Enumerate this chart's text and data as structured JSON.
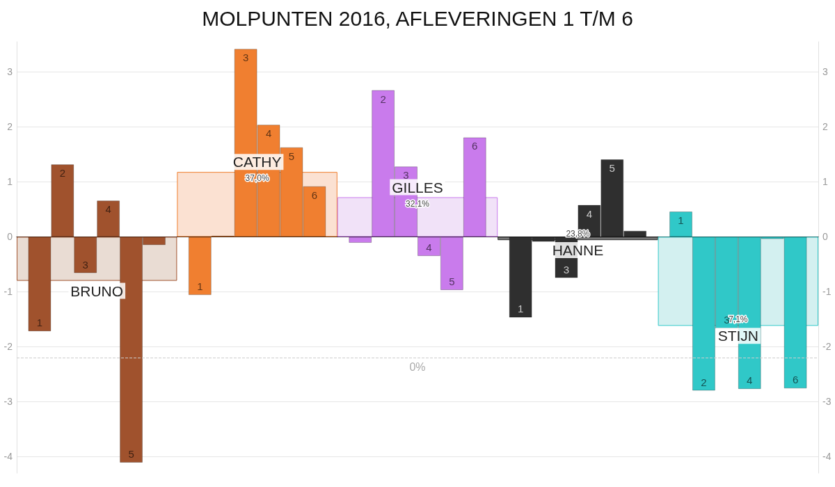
{
  "chart_data": {
    "type": "bar",
    "title": "MOLPUNTEN 2016, AFLEVERINGEN 1 T/M 6",
    "categories": [
      "BRUNO",
      "CATHY",
      "GILLES",
      "HANNE",
      "STIJN"
    ],
    "series": [
      {
        "colors": [
          "#e9dcd3",
          "#fbe1d2",
          "#f1e2f8",
          "#777777",
          "#d3f0f0"
        ],
        "values": [
          -0.8,
          1.18,
          0.72,
          -0.06,
          -1.62
        ]
      },
      {
        "name": "1",
        "colors": [
          "#a0522d",
          "#f07f30",
          "#c97bec",
          "#2f2f2f",
          "#30c8c8"
        ],
        "values": [
          -1.72,
          -1.06,
          -0.11,
          -1.47,
          0.46
        ]
      },
      {
        "name": "2",
        "colors": [
          "#a0522d",
          "#f07f30",
          "#c97bec",
          "#2f2f2f",
          "#30c8c8"
        ],
        "values": [
          1.32,
          0.02,
          2.67,
          -0.09,
          -2.8
        ]
      },
      {
        "name": "3",
        "colors": [
          "#a0522d",
          "#f07f30",
          "#c97bec",
          "#2f2f2f",
          "#30c8c8"
        ],
        "values": [
          -0.66,
          3.42,
          1.28,
          -0.75,
          -1.67
        ]
      },
      {
        "name": "4",
        "colors": [
          "#a0522d",
          "#f07f30",
          "#c97bec",
          "#2f2f2f",
          "#30c8c8"
        ],
        "values": [
          0.66,
          2.04,
          -0.35,
          0.58,
          -2.77
        ]
      },
      {
        "name": "5",
        "colors": [
          "#a0522d",
          "#f07f30",
          "#c97bec",
          "#2f2f2f",
          "#30c8c8"
        ],
        "values": [
          -4.11,
          1.63,
          -0.97,
          1.41,
          -0.04
        ]
      },
      {
        "name": "6",
        "colors": [
          "#a0522d",
          "#f07f30",
          "#c97bec",
          "#2f2f2f",
          "#30c8c8"
        ],
        "values": [
          -0.15,
          0.92,
          1.81,
          0.11,
          -2.76
        ]
      }
    ],
    "annotations": [
      {
        "text": "37,0%",
        "x": "CATHY",
        "y": 1.18
      },
      {
        "text": "32,1%",
        "x": "GILLES",
        "y": 0.72
      },
      {
        "text": "23,8%",
        "x": "HANNE",
        "y": -0.06
      },
      {
        "text": "7,1%",
        "x": "STIJN",
        "y": -1.62
      },
      {
        "text": "0%",
        "y": -2.2
      }
    ],
    "ylim": [
      -4.3,
      3.55
    ],
    "yticks": [
      -4,
      -3,
      -2,
      -1,
      0,
      1,
      2,
      3
    ],
    "y2lim": [
      -4.3,
      3.55
    ],
    "y2ticks": [
      -4,
      -3,
      -2,
      -1,
      0,
      1,
      2,
      3
    ],
    "ref_lines": [
      {
        "axis": "y",
        "value": -2.2,
        "color": "#cccccc",
        "line_style": "dashed"
      }
    ],
    "grid": "y",
    "legend": false
  }
}
